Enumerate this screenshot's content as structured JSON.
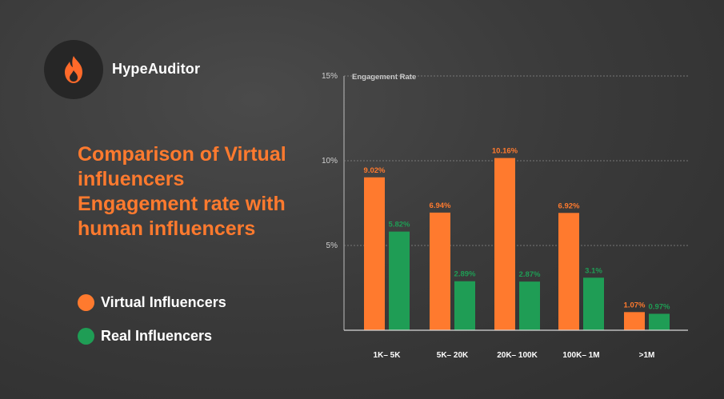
{
  "brand": {
    "name": "HypeAuditor",
    "icon": "flame-icon"
  },
  "headline": "Comparison of Virtual influencers Engagement rate with human influencers",
  "legend": [
    {
      "label": "Virtual Influencers",
      "color": "#ff7a2e"
    },
    {
      "label": "Real Influencers",
      "color": "#1f9d55"
    }
  ],
  "chart_data": {
    "type": "bar",
    "title": "Engagement Rate",
    "categories": [
      "1K– 5K",
      "5K– 20K",
      "20K– 100K",
      "100K– 1M",
      ">1M"
    ],
    "series": [
      {
        "name": "Virtual Influencers",
        "color": "#ff7a2e",
        "values": [
          9.02,
          6.94,
          10.16,
          6.92,
          1.07
        ],
        "labels": [
          "9.02%",
          "6.94%",
          "10.16%",
          "6.92%",
          "1.07%"
        ]
      },
      {
        "name": "Real Influencers",
        "color": "#1f9d55",
        "values": [
          5.82,
          2.89,
          2.87,
          3.1,
          0.97
        ],
        "labels": [
          "5.82%",
          "2.89%",
          "2.87%",
          "3.1%",
          "0.97%"
        ]
      }
    ],
    "yticks": [
      {
        "value": 5,
        "label": "5%"
      },
      {
        "value": 10,
        "label": "10%"
      },
      {
        "value": 15,
        "label": "15%"
      }
    ],
    "ylim": [
      0,
      15
    ],
    "grid": true,
    "grid_style": "dashed",
    "legend_position": "left"
  }
}
